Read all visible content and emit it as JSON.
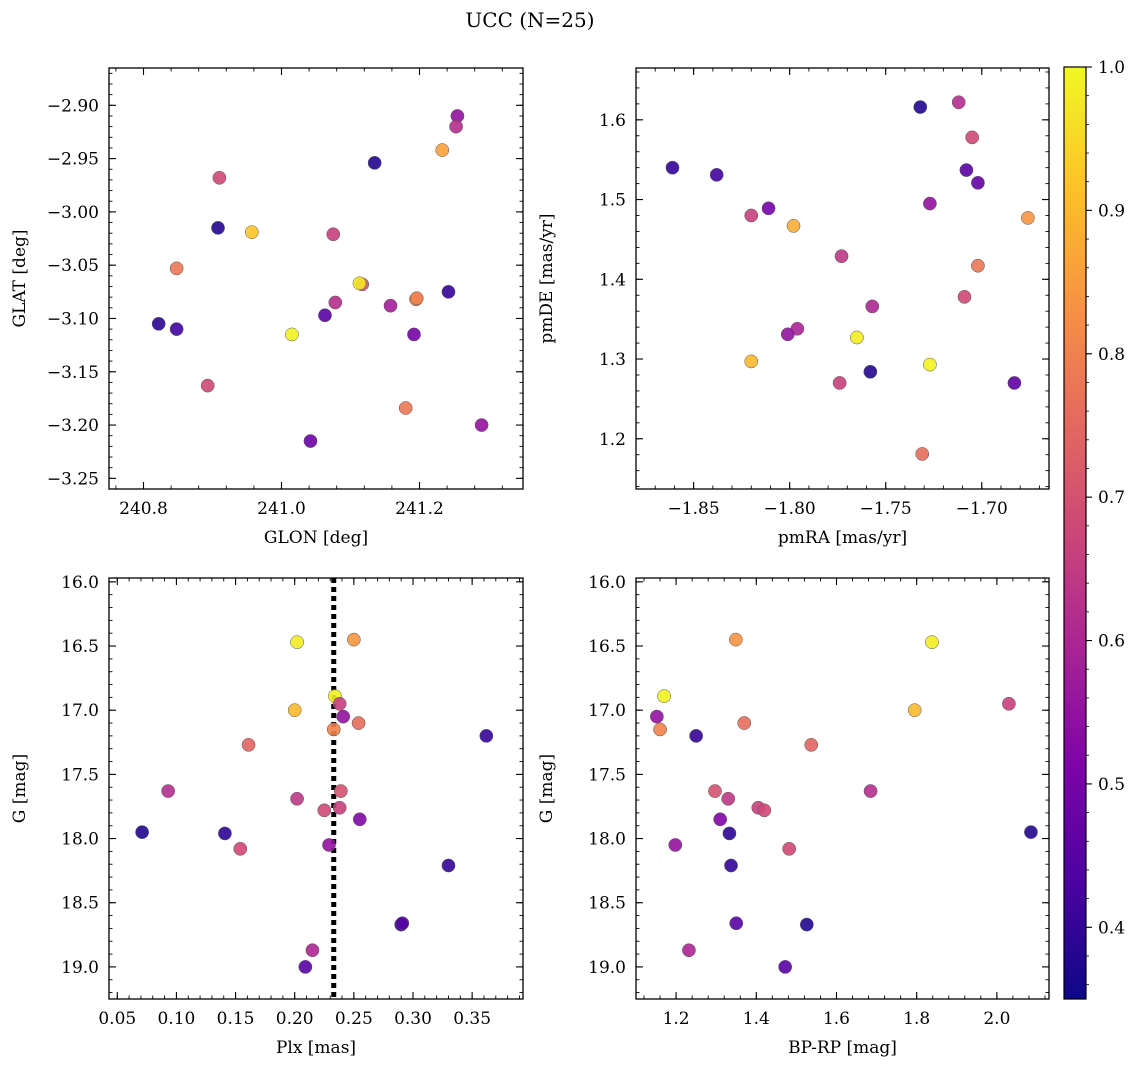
{
  "figure": {
    "title": "UCC (N=25)"
  },
  "colormap": {
    "name": "plasma",
    "vmin": 0.35,
    "vmax": 1.0,
    "tick_labels": [
      "0.4",
      "0.5",
      "0.6",
      "0.7",
      "0.8",
      "0.9",
      "1.0"
    ],
    "tick_values": [
      0.4,
      0.5,
      0.6,
      0.7,
      0.8,
      0.9,
      1.0
    ]
  },
  "chart_data": [
    {
      "type": "scatter",
      "title": "",
      "xlabel": "GLON [deg]",
      "ylabel": "GLAT [deg]",
      "xlim": [
        240.75,
        241.35
      ],
      "ylim": [
        -3.26,
        -2.865
      ],
      "y_inverted": false,
      "xticks": [
        240.8,
        241.0,
        241.2
      ],
      "xtick_labels": [
        "240.8",
        "241.0",
        "241.2"
      ],
      "yticks": [
        -2.9,
        -2.95,
        -3.0,
        -3.05,
        -3.1,
        -3.15,
        -3.2,
        -3.25
      ],
      "ytick_labels": [
        "−2.90",
        "−2.95",
        "−3.00",
        "−3.05",
        "−3.10",
        "−3.15",
        "−3.20",
        "−3.25"
      ],
      "points": [
        {
          "x": 241.255,
          "y": -2.91,
          "c": 0.55
        },
        {
          "x": 241.253,
          "y": -2.92,
          "c": 0.62
        },
        {
          "x": 241.233,
          "y": -2.942,
          "c": 0.86
        },
        {
          "x": 241.135,
          "y": -2.954,
          "c": 0.38
        },
        {
          "x": 240.91,
          "y": -2.968,
          "c": 0.68
        },
        {
          "x": 240.908,
          "y": -3.015,
          "c": 0.38
        },
        {
          "x": 240.957,
          "y": -3.019,
          "c": 0.92
        },
        {
          "x": 241.075,
          "y": -3.021,
          "c": 0.66
        },
        {
          "x": 240.848,
          "y": -3.053,
          "c": 0.78
        },
        {
          "x": 241.117,
          "y": -3.068,
          "c": 0.7
        },
        {
          "x": 241.113,
          "y": -3.067,
          "c": 0.97
        },
        {
          "x": 241.195,
          "y": -3.082,
          "c": 0.82
        },
        {
          "x": 241.196,
          "y": -3.081,
          "c": 0.8
        },
        {
          "x": 241.242,
          "y": -3.075,
          "c": 0.4
        },
        {
          "x": 241.078,
          "y": -3.085,
          "c": 0.62
        },
        {
          "x": 241.158,
          "y": -3.088,
          "c": 0.58
        },
        {
          "x": 241.063,
          "y": -3.097,
          "c": 0.45
        },
        {
          "x": 240.822,
          "y": -3.105,
          "c": 0.39
        },
        {
          "x": 240.848,
          "y": -3.11,
          "c": 0.42
        },
        {
          "x": 241.015,
          "y": -3.115,
          "c": 0.99
        },
        {
          "x": 241.192,
          "y": -3.115,
          "c": 0.5
        },
        {
          "x": 240.893,
          "y": -3.163,
          "c": 0.68
        },
        {
          "x": 241.18,
          "y": -3.184,
          "c": 0.78
        },
        {
          "x": 241.042,
          "y": -3.215,
          "c": 0.48
        },
        {
          "x": 241.29,
          "y": -3.2,
          "c": 0.55
        }
      ]
    },
    {
      "type": "scatter",
      "title": "",
      "xlabel": "pmRA [mas/yr]",
      "ylabel": "pmDE [mas/yr]",
      "xlim": [
        -1.88,
        -1.665
      ],
      "ylim": [
        1.137,
        1.665
      ],
      "y_inverted": false,
      "xticks": [
        -1.85,
        -1.8,
        -1.75,
        -1.7
      ],
      "xtick_labels": [
        "−1.85",
        "−1.80",
        "−1.75",
        "−1.70"
      ],
      "yticks": [
        1.2,
        1.3,
        1.4,
        1.5,
        1.6
      ],
      "ytick_labels": [
        "1.2",
        "1.3",
        "1.4",
        "1.5",
        "1.6"
      ],
      "points": [
        {
          "x": -1.861,
          "y": 1.54,
          "c": 0.4
        },
        {
          "x": -1.838,
          "y": 1.531,
          "c": 0.42
        },
        {
          "x": -1.732,
          "y": 1.616,
          "c": 0.38
        },
        {
          "x": -1.712,
          "y": 1.622,
          "c": 0.62
        },
        {
          "x": -1.705,
          "y": 1.578,
          "c": 0.68
        },
        {
          "x": -1.708,
          "y": 1.537,
          "c": 0.45
        },
        {
          "x": -1.702,
          "y": 1.521,
          "c": 0.47
        },
        {
          "x": -1.727,
          "y": 1.495,
          "c": 0.55
        },
        {
          "x": -1.82,
          "y": 1.48,
          "c": 0.66
        },
        {
          "x": -1.811,
          "y": 1.489,
          "c": 0.5
        },
        {
          "x": -1.798,
          "y": 1.467,
          "c": 0.88
        },
        {
          "x": -1.676,
          "y": 1.477,
          "c": 0.84
        },
        {
          "x": -1.773,
          "y": 1.429,
          "c": 0.64
        },
        {
          "x": -1.702,
          "y": 1.417,
          "c": 0.78
        },
        {
          "x": -1.709,
          "y": 1.378,
          "c": 0.68
        },
        {
          "x": -1.757,
          "y": 1.366,
          "c": 0.6
        },
        {
          "x": -1.796,
          "y": 1.338,
          "c": 0.6
        },
        {
          "x": -1.801,
          "y": 1.331,
          "c": 0.55
        },
        {
          "x": -1.765,
          "y": 1.327,
          "c": 0.98
        },
        {
          "x": -1.82,
          "y": 1.297,
          "c": 0.9
        },
        {
          "x": -1.727,
          "y": 1.293,
          "c": 0.99
        },
        {
          "x": -1.758,
          "y": 1.284,
          "c": 0.38
        },
        {
          "x": -1.774,
          "y": 1.27,
          "c": 0.66
        },
        {
          "x": -1.683,
          "y": 1.27,
          "c": 0.46
        },
        {
          "x": -1.731,
          "y": 1.181,
          "c": 0.76
        }
      ]
    },
    {
      "type": "scatter",
      "title": "",
      "xlabel": "Plx [mas]",
      "ylabel": "G [mag]",
      "xlim": [
        0.043,
        0.393
      ],
      "ylim": [
        19.25,
        15.97
      ],
      "y_inverted": true,
      "xticks": [
        0.05,
        0.1,
        0.15,
        0.2,
        0.25,
        0.3,
        0.35
      ],
      "xtick_labels": [
        "0.05",
        "0.10",
        "0.15",
        "0.20",
        "0.25",
        "0.30",
        "0.35"
      ],
      "yticks": [
        16.0,
        16.5,
        17.0,
        17.5,
        18.0,
        18.5,
        19.0
      ],
      "ytick_labels": [
        "16.0",
        "16.5",
        "17.0",
        "17.5",
        "18.0",
        "18.5",
        "19.0"
      ],
      "vline": {
        "x": 0.233
      },
      "points": [
        {
          "x": 0.202,
          "y": 16.47,
          "c": 0.98
        },
        {
          "x": 0.25,
          "y": 16.45,
          "c": 0.84
        },
        {
          "x": 0.234,
          "y": 16.89,
          "c": 0.99
        },
        {
          "x": 0.238,
          "y": 16.95,
          "c": 0.66
        },
        {
          "x": 0.2,
          "y": 17.0,
          "c": 0.9
        },
        {
          "x": 0.241,
          "y": 17.05,
          "c": 0.55
        },
        {
          "x": 0.254,
          "y": 17.1,
          "c": 0.76
        },
        {
          "x": 0.233,
          "y": 17.15,
          "c": 0.8
        },
        {
          "x": 0.161,
          "y": 17.27,
          "c": 0.74
        },
        {
          "x": 0.362,
          "y": 17.2,
          "c": 0.4
        },
        {
          "x": 0.093,
          "y": 17.63,
          "c": 0.62
        },
        {
          "x": 0.239,
          "y": 17.63,
          "c": 0.7
        },
        {
          "x": 0.202,
          "y": 17.69,
          "c": 0.64
        },
        {
          "x": 0.238,
          "y": 17.76,
          "c": 0.66
        },
        {
          "x": 0.225,
          "y": 17.78,
          "c": 0.68
        },
        {
          "x": 0.255,
          "y": 17.85,
          "c": 0.52
        },
        {
          "x": 0.071,
          "y": 17.95,
          "c": 0.38
        },
        {
          "x": 0.141,
          "y": 17.96,
          "c": 0.39
        },
        {
          "x": 0.229,
          "y": 18.05,
          "c": 0.55
        },
        {
          "x": 0.154,
          "y": 18.08,
          "c": 0.68
        },
        {
          "x": 0.33,
          "y": 18.21,
          "c": 0.4
        },
        {
          "x": 0.29,
          "y": 18.67,
          "c": 0.38
        },
        {
          "x": 0.291,
          "y": 18.66,
          "c": 0.45
        },
        {
          "x": 0.215,
          "y": 18.87,
          "c": 0.6
        },
        {
          "x": 0.209,
          "y": 19.0,
          "c": 0.45
        }
      ]
    },
    {
      "type": "scatter",
      "title": "",
      "xlabel": "BP-RP [mag]",
      "ylabel": "G [mag]",
      "xlim": [
        1.1,
        2.13
      ],
      "ylim": [
        19.25,
        15.97
      ],
      "y_inverted": true,
      "xticks": [
        1.2,
        1.4,
        1.6,
        1.8,
        2.0
      ],
      "xtick_labels": [
        "1.2",
        "1.4",
        "1.6",
        "1.8",
        "2.0"
      ],
      "yticks": [
        16.0,
        16.5,
        17.0,
        17.5,
        18.0,
        18.5,
        19.0
      ],
      "ytick_labels": [
        "16.0",
        "16.5",
        "17.0",
        "17.5",
        "18.0",
        "18.5",
        "19.0"
      ],
      "points": [
        {
          "x": 1.349,
          "y": 16.45,
          "c": 0.84
        },
        {
          "x": 1.838,
          "y": 16.47,
          "c": 0.98
        },
        {
          "x": 1.17,
          "y": 16.89,
          "c": 0.99
        },
        {
          "x": 2.03,
          "y": 16.95,
          "c": 0.66
        },
        {
          "x": 1.795,
          "y": 17.0,
          "c": 0.9
        },
        {
          "x": 1.152,
          "y": 17.05,
          "c": 0.55
        },
        {
          "x": 1.16,
          "y": 17.15,
          "c": 0.8
        },
        {
          "x": 1.37,
          "y": 17.1,
          "c": 0.76
        },
        {
          "x": 1.25,
          "y": 17.2,
          "c": 0.4
        },
        {
          "x": 1.537,
          "y": 17.27,
          "c": 0.74
        },
        {
          "x": 1.297,
          "y": 17.63,
          "c": 0.7
        },
        {
          "x": 1.685,
          "y": 17.63,
          "c": 0.62
        },
        {
          "x": 1.33,
          "y": 17.69,
          "c": 0.64
        },
        {
          "x": 1.405,
          "y": 17.76,
          "c": 0.66
        },
        {
          "x": 1.42,
          "y": 17.78,
          "c": 0.68
        },
        {
          "x": 1.31,
          "y": 17.85,
          "c": 0.52
        },
        {
          "x": 1.333,
          "y": 17.96,
          "c": 0.39
        },
        {
          "x": 2.085,
          "y": 17.95,
          "c": 0.38
        },
        {
          "x": 1.198,
          "y": 18.05,
          "c": 0.55
        },
        {
          "x": 1.482,
          "y": 18.08,
          "c": 0.68
        },
        {
          "x": 1.337,
          "y": 18.21,
          "c": 0.4
        },
        {
          "x": 1.35,
          "y": 18.66,
          "c": 0.45
        },
        {
          "x": 1.526,
          "y": 18.67,
          "c": 0.38
        },
        {
          "x": 1.232,
          "y": 18.87,
          "c": 0.6
        },
        {
          "x": 1.472,
          "y": 19.0,
          "c": 0.45
        }
      ]
    }
  ]
}
